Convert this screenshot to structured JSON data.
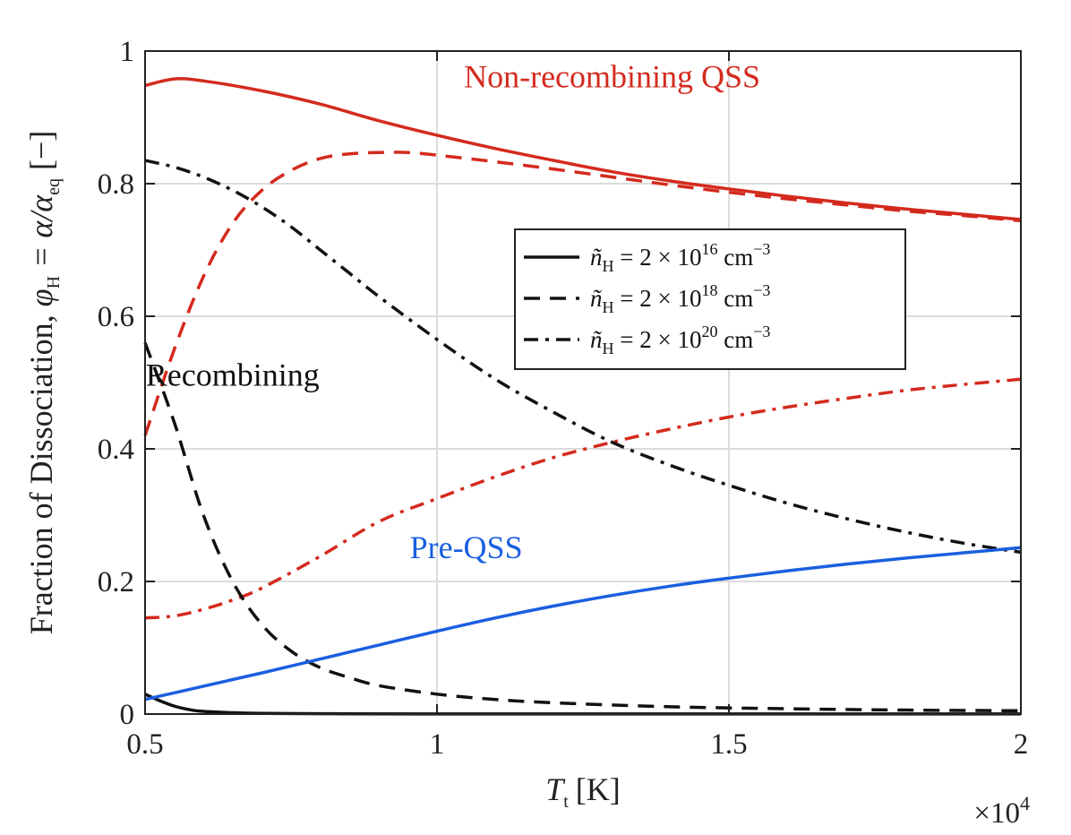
{
  "chart_data": {
    "type": "line",
    "title": "",
    "xlabel": {
      "symbol": "T",
      "subscript": "t",
      "unit": "[K]"
    },
    "ylabel": {
      "text": "Fraction of Dissociation, ",
      "phi": "φ",
      "phi_sub": "H",
      "eq": " = α/α",
      "eq_sub": "eq",
      "unit": " [−]"
    },
    "x_multiplier": {
      "base": "×10",
      "exponent": "4"
    },
    "xlim": [
      0.5,
      2
    ],
    "ylim": [
      0,
      1
    ],
    "x_ticks": [
      0.5,
      1,
      1.5,
      2
    ],
    "x_tick_labels": [
      "0.5",
      "1",
      "1.5",
      "2"
    ],
    "y_ticks": [
      0,
      0.2,
      0.4,
      0.6,
      0.8,
      1
    ],
    "y_tick_labels": [
      "0",
      "0.2",
      "0.4",
      "0.6",
      "0.8",
      "1"
    ],
    "grid": true,
    "legend_position": "upper-right",
    "legend": [
      {
        "style": "solid",
        "prefix": "ñ",
        "sub": "H",
        "mid": " = 2 × 10",
        "exp": "16",
        "unit": " cm",
        "unit_exp": "−3"
      },
      {
        "style": "dashed",
        "prefix": "ñ",
        "sub": "H",
        "mid": " = 2 × 10",
        "exp": "18",
        "unit": " cm",
        "unit_exp": "−3"
      },
      {
        "style": "dashdot",
        "prefix": "ñ",
        "sub": "H",
        "mid": " = 2 × 10",
        "exp": "20",
        "unit": " cm",
        "unit_exp": "−3"
      }
    ],
    "annotations": [
      {
        "text": "Non-recombining QSS",
        "color": "#d42a1e",
        "x": 1.3,
        "y": 0.945
      },
      {
        "text": "Recombining",
        "color": "#111111",
        "x": 0.65,
        "y": 0.495
      },
      {
        "text": "Pre-QSS",
        "color": "#1a5fe0",
        "x": 1.05,
        "y": 0.235
      }
    ],
    "colors": {
      "nonrecombining": "#d42a1e",
      "recombining": "#111111",
      "preqss": "#1a5fe0"
    },
    "series": [
      {
        "name": "Non-recombining QSS, 2e16",
        "group": "nonrecombining",
        "style": "solid",
        "x": [
          0.5,
          0.55,
          0.6,
          0.7,
          0.8,
          0.9,
          1.0,
          1.1,
          1.2,
          1.3,
          1.4,
          1.5,
          1.6,
          1.7,
          1.8,
          1.9,
          2.0
        ],
        "y": [
          0.948,
          0.958,
          0.955,
          0.94,
          0.92,
          0.895,
          0.873,
          0.853,
          0.835,
          0.818,
          0.804,
          0.792,
          0.781,
          0.771,
          0.762,
          0.754,
          0.746
        ]
      },
      {
        "name": "Non-recombining QSS, 2e18",
        "group": "nonrecombining",
        "style": "dashed",
        "x": [
          0.5,
          0.55,
          0.6,
          0.65,
          0.7,
          0.75,
          0.8,
          0.85,
          0.9,
          0.95,
          1.0,
          1.1,
          1.2,
          1.3,
          1.4,
          1.5,
          1.6,
          1.7,
          1.8,
          1.9,
          2.0
        ],
        "y": [
          0.42,
          0.55,
          0.66,
          0.74,
          0.79,
          0.82,
          0.838,
          0.845,
          0.847,
          0.847,
          0.843,
          0.833,
          0.822,
          0.81,
          0.798,
          0.787,
          0.777,
          0.768,
          0.759,
          0.752,
          0.744
        ]
      },
      {
        "name": "Non-recombining QSS, 2e20",
        "group": "nonrecombining",
        "style": "dashdot",
        "x": [
          0.5,
          0.55,
          0.6,
          0.65,
          0.7,
          0.8,
          0.9,
          1.0,
          1.1,
          1.2,
          1.3,
          1.4,
          1.5,
          1.6,
          1.7,
          1.8,
          1.9,
          2.0
        ],
        "y": [
          0.145,
          0.148,
          0.158,
          0.172,
          0.19,
          0.238,
          0.29,
          0.325,
          0.358,
          0.387,
          0.41,
          0.43,
          0.448,
          0.463,
          0.476,
          0.488,
          0.497,
          0.505
        ]
      },
      {
        "name": "Recombining, 2e16",
        "group": "recombining",
        "style": "solid",
        "x": [
          0.5,
          0.52,
          0.55,
          0.58,
          0.6,
          0.65,
          0.7,
          0.8,
          1.0,
          1.5,
          2.0
        ],
        "y": [
          0.03,
          0.022,
          0.012,
          0.006,
          0.004,
          0.002,
          0.001,
          0.0005,
          0.0002,
          0.0001,
          0.0001
        ]
      },
      {
        "name": "Recombining, 2e18",
        "group": "recombining",
        "style": "dashed",
        "x": [
          0.5,
          0.55,
          0.6,
          0.65,
          0.7,
          0.75,
          0.8,
          0.85,
          0.9,
          1.0,
          1.1,
          1.2,
          1.4,
          1.6,
          1.8,
          2.0
        ],
        "y": [
          0.56,
          0.44,
          0.3,
          0.2,
          0.135,
          0.095,
          0.07,
          0.055,
          0.043,
          0.03,
          0.022,
          0.017,
          0.011,
          0.008,
          0.006,
          0.005
        ]
      },
      {
        "name": "Recombining, 2e20",
        "group": "recombining",
        "style": "dashdot",
        "x": [
          0.5,
          0.55,
          0.6,
          0.65,
          0.7,
          0.75,
          0.8,
          0.85,
          0.9,
          1.0,
          1.1,
          1.2,
          1.3,
          1.4,
          1.5,
          1.6,
          1.7,
          1.8,
          1.9,
          2.0
        ],
        "y": [
          0.835,
          0.825,
          0.81,
          0.79,
          0.765,
          0.735,
          0.7,
          0.665,
          0.63,
          0.565,
          0.505,
          0.455,
          0.41,
          0.375,
          0.345,
          0.318,
          0.295,
          0.275,
          0.258,
          0.244
        ]
      },
      {
        "name": "Pre-QSS, 2e16",
        "group": "preqss",
        "style": "solid",
        "x": [
          0.5,
          0.6,
          0.7,
          0.8,
          0.9,
          1.0,
          1.1,
          1.2,
          1.3,
          1.4,
          1.5,
          1.6,
          1.7,
          1.8,
          1.9,
          2.0
        ],
        "y": [
          0.022,
          0.042,
          0.062,
          0.083,
          0.104,
          0.125,
          0.145,
          0.163,
          0.179,
          0.193,
          0.205,
          0.216,
          0.226,
          0.235,
          0.243,
          0.251
        ]
      }
    ]
  }
}
